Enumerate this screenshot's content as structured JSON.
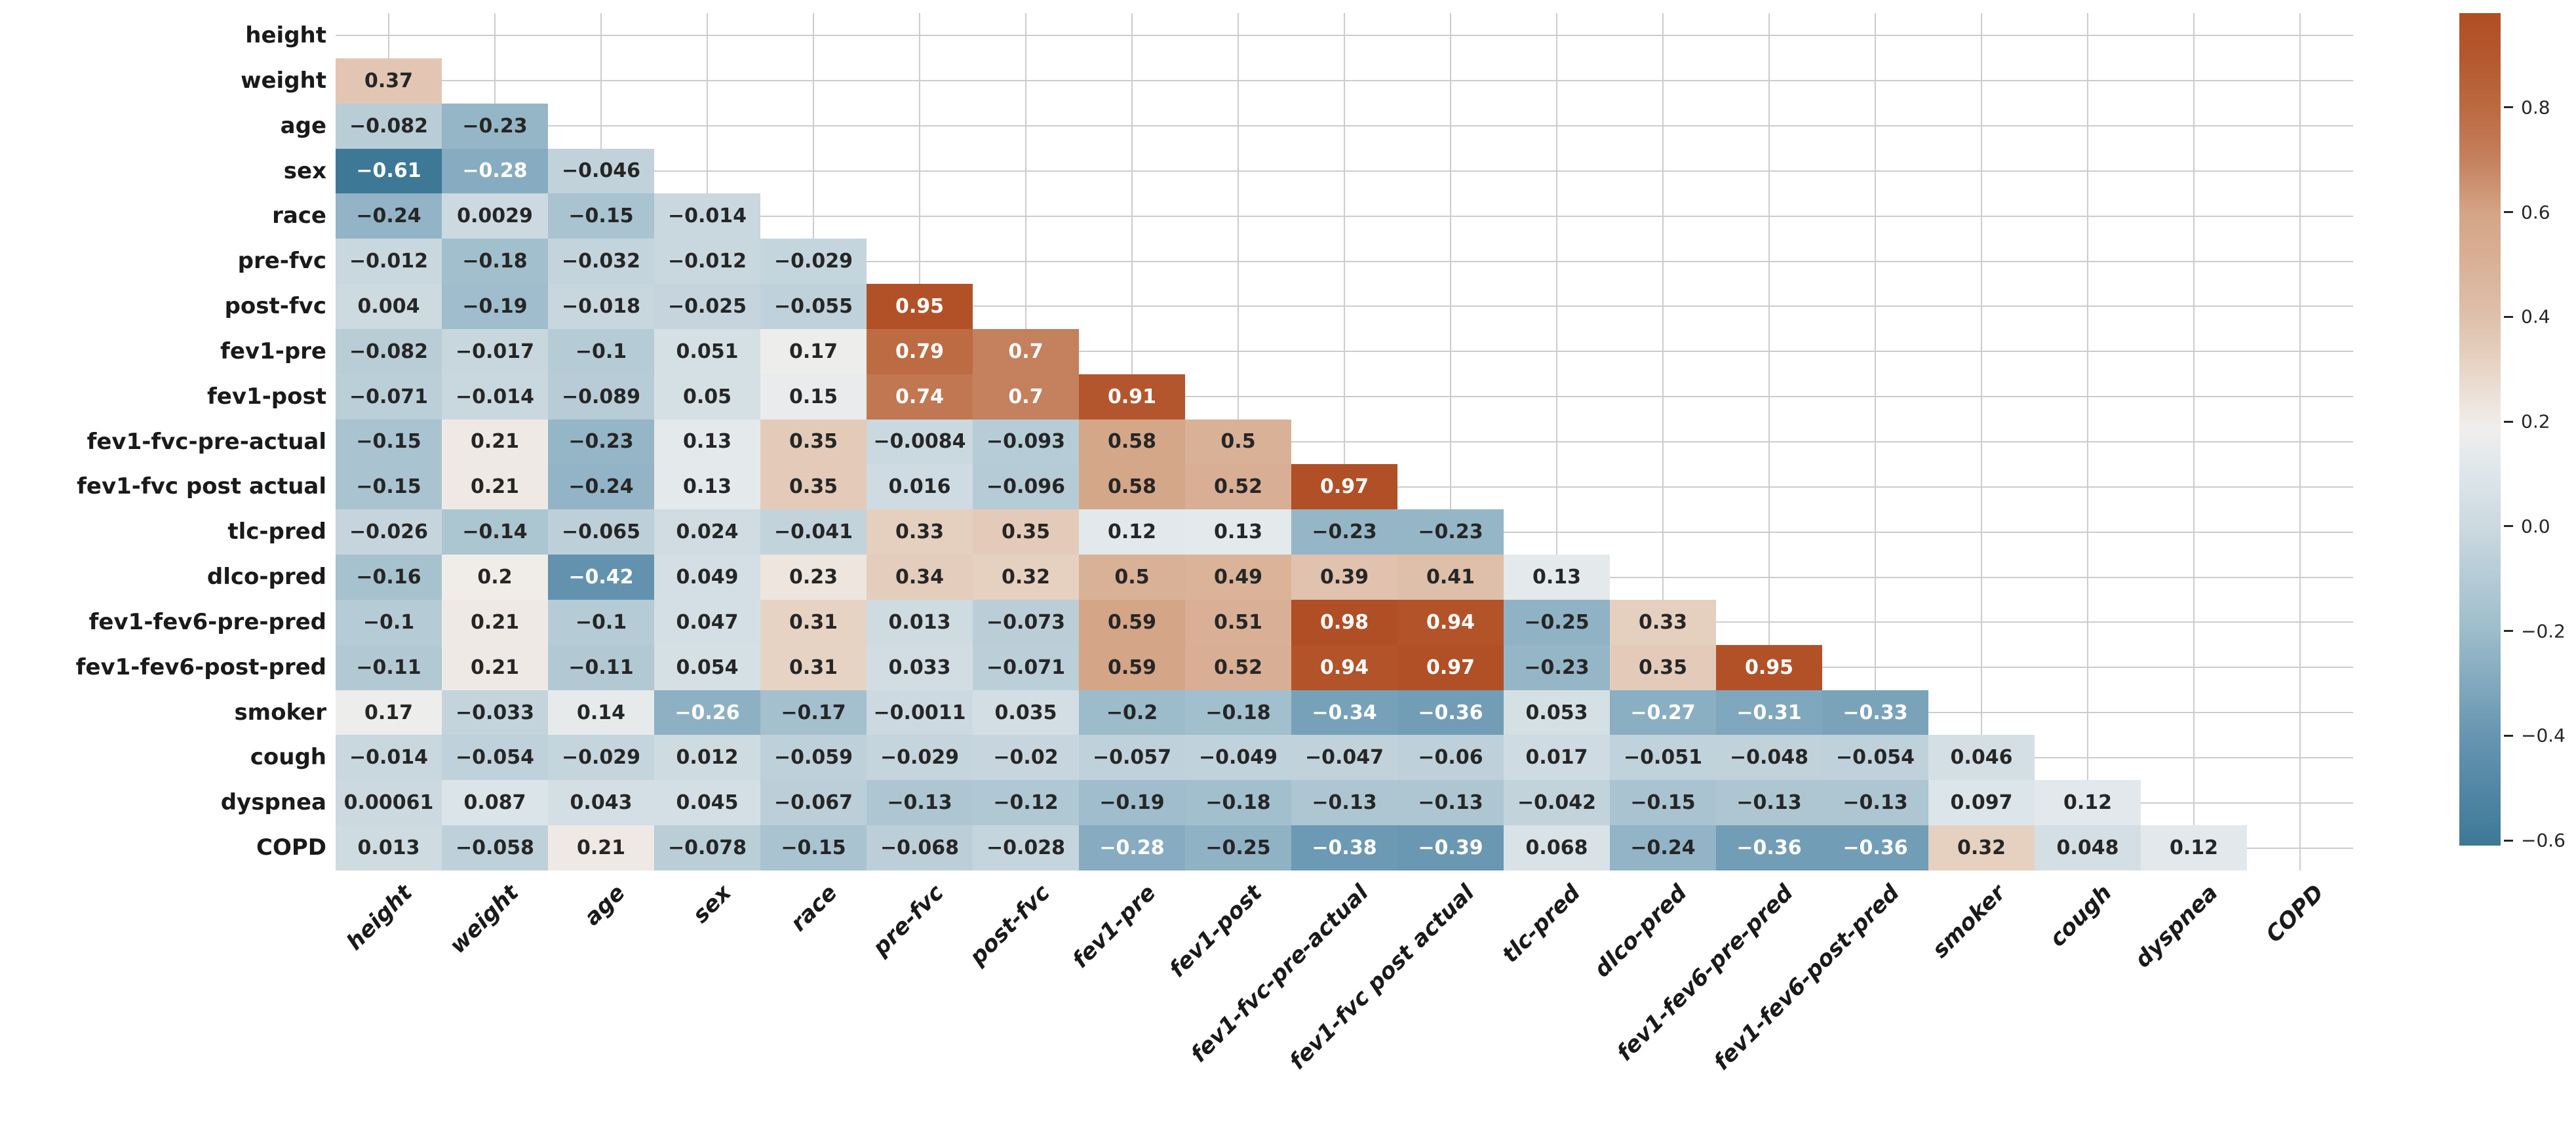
{
  "chart_data": {
    "type": "heatmap",
    "subtype": "correlation-matrix-lower-triangle",
    "title": "",
    "xlabel": "",
    "ylabel": "",
    "grid": true,
    "legend_position": "right-colorbar",
    "variables": [
      "height",
      "weight",
      "age",
      "sex",
      "race",
      "pre-fvc",
      "post-fvc",
      "fev1-pre",
      "fev1-post",
      "fev1-fvc-pre-actual",
      "fev1-fvc post actual",
      "tlc-pred",
      "dlco-pred",
      "fev1-fev6-pre-pred",
      "fev1-fev6-post-pred",
      "smoker",
      "cough",
      "dyspnea",
      "COPD"
    ],
    "matrix_lower_triangle": [
      [],
      [
        "0.37"
      ],
      [
        "-0.082",
        "-0.23"
      ],
      [
        "-0.61",
        "-0.28",
        "-0.046"
      ],
      [
        "-0.24",
        "0.0029",
        "-0.15",
        "-0.014"
      ],
      [
        "-0.012",
        "-0.18",
        "-0.032",
        "-0.012",
        "-0.029"
      ],
      [
        "0.004",
        "-0.19",
        "-0.018",
        "-0.025",
        "-0.055",
        "0.95"
      ],
      [
        "-0.082",
        "-0.017",
        "-0.1",
        "0.051",
        "0.17",
        "0.79",
        "0.7"
      ],
      [
        "-0.071",
        "-0.014",
        "-0.089",
        "0.05",
        "0.15",
        "0.74",
        "0.7",
        "0.91"
      ],
      [
        "-0.15",
        "0.21",
        "-0.23",
        "0.13",
        "0.35",
        "-0.0084",
        "-0.093",
        "0.58",
        "0.5"
      ],
      [
        "-0.15",
        "0.21",
        "-0.24",
        "0.13",
        "0.35",
        "0.016",
        "-0.096",
        "0.58",
        "0.52",
        "0.97"
      ],
      [
        "-0.026",
        "-0.14",
        "-0.065",
        "0.024",
        "-0.041",
        "0.33",
        "0.35",
        "0.12",
        "0.13",
        "-0.23",
        "-0.23"
      ],
      [
        "-0.16",
        "0.2",
        "-0.42",
        "0.049",
        "0.23",
        "0.34",
        "0.32",
        "0.5",
        "0.49",
        "0.39",
        "0.41",
        "0.13"
      ],
      [
        "-0.1",
        "0.21",
        "-0.1",
        "0.047",
        "0.31",
        "0.013",
        "-0.073",
        "0.59",
        "0.51",
        "0.98",
        "0.94",
        "-0.25",
        "0.33"
      ],
      [
        "-0.11",
        "0.21",
        "-0.11",
        "0.054",
        "0.31",
        "0.033",
        "-0.071",
        "0.59",
        "0.52",
        "0.94",
        "0.97",
        "-0.23",
        "0.35",
        "0.95"
      ],
      [
        "0.17",
        "-0.033",
        "0.14",
        "-0.26",
        "-0.17",
        "-0.0011",
        "0.035",
        "-0.2",
        "-0.18",
        "-0.34",
        "-0.36",
        "0.053",
        "-0.27",
        "-0.31",
        "-0.33"
      ],
      [
        "-0.014",
        "-0.054",
        "-0.029",
        "0.012",
        "-0.059",
        "-0.029",
        "-0.02",
        "-0.057",
        "-0.049",
        "-0.047",
        "-0.06",
        "0.017",
        "-0.051",
        "-0.048",
        "-0.054",
        "0.046"
      ],
      [
        "0.00061",
        "0.087",
        "0.043",
        "0.045",
        "-0.067",
        "-0.13",
        "-0.12",
        "-0.19",
        "-0.18",
        "-0.13",
        "-0.13",
        "-0.042",
        "-0.15",
        "-0.13",
        "-0.13",
        "0.097",
        "0.12"
      ],
      [
        "0.013",
        "-0.058",
        "0.21",
        "-0.078",
        "-0.15",
        "-0.068",
        "-0.028",
        "-0.28",
        "-0.25",
        "-0.38",
        "-0.39",
        "0.068",
        "-0.24",
        "-0.36",
        "-0.36",
        "0.32",
        "0.048",
        "0.12"
      ]
    ],
    "colorbar": {
      "vmin": -0.61,
      "vmax": 0.98,
      "center": 0.185,
      "tick_labels": [
        "0.8",
        "0.6",
        "0.4",
        "0.2",
        "0.0",
        "-0.2",
        "-0.4",
        "-0.6"
      ],
      "tick_values": [
        0.8,
        0.6,
        0.4,
        0.2,
        0.0,
        -0.2,
        -0.4,
        -0.6
      ]
    },
    "colors": {
      "colormap_stops": [
        [
          -0.61,
          "#3d7897"
        ],
        [
          -0.4,
          "#6795b1"
        ],
        [
          -0.2,
          "#9dbccb"
        ],
        [
          0.0,
          "#ccd9e0"
        ],
        [
          0.1,
          "#dde6ea"
        ],
        [
          0.185,
          "#f1efed"
        ],
        [
          0.3,
          "#e8d5c7"
        ],
        [
          0.4,
          "#dfc0ab"
        ],
        [
          0.5,
          "#d9b197"
        ],
        [
          0.6,
          "#d4a486"
        ],
        [
          0.7,
          "#c5805d"
        ],
        [
          0.8,
          "#bc6940"
        ],
        [
          0.9,
          "#b4572e"
        ],
        [
          0.98,
          "#b04e25"
        ]
      ],
      "annotation_dark_text": "#262626",
      "annotation_light_text": "#ffffff",
      "axis_label_text": "#1a1a1a",
      "gridline": "#cccccc",
      "background": "#ffffff"
    }
  }
}
